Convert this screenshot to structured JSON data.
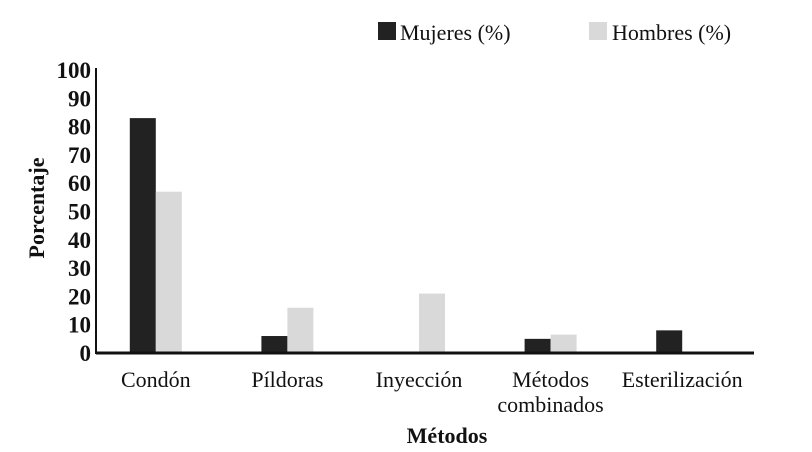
{
  "chart_data": {
    "type": "bar",
    "categories": [
      [
        "Condón"
      ],
      [
        "Píldoras"
      ],
      [
        "Inyección"
      ],
      [
        "Métodos",
        "combinados"
      ],
      [
        "Esterilización"
      ]
    ],
    "series": [
      {
        "name": "Mujeres (%)",
        "color": "#222222",
        "values": [
          83,
          6,
          0,
          5,
          8
        ]
      },
      {
        "name": "Hombres (%)",
        "color": "#d9d9d9",
        "values": [
          57,
          16,
          21,
          6.5,
          0
        ]
      }
    ],
    "ylim": [
      0,
      100
    ],
    "yticks": [
      0,
      10,
      20,
      30,
      40,
      50,
      60,
      70,
      80,
      90,
      100
    ],
    "ylabel": "Porcentaje",
    "xlabel": "Métodos",
    "legend": "top-right"
  }
}
